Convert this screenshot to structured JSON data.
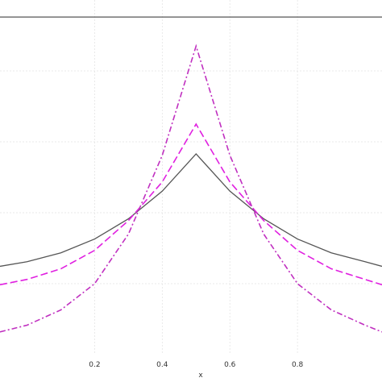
{
  "chart_data": {
    "type": "line",
    "title": "",
    "xlabel": "x",
    "ylabel": "",
    "xlim": [
      -0.08,
      1.05
    ],
    "ylim": [
      0,
      1
    ],
    "grid": true,
    "x_ticks": [
      0.2,
      0.4,
      0.6,
      0.8
    ],
    "x_tick_labels": [
      "0.2",
      "0.4",
      "0.6",
      "0.8"
    ],
    "series": [
      {
        "style": "solid",
        "color": "#555555",
        "x": [
          -0.08,
          0.0,
          0.1,
          0.2,
          0.3,
          0.4,
          0.5,
          0.6,
          0.7,
          0.8,
          0.9,
          1.0,
          1.05
        ],
        "y": [
          0.249,
          0.262,
          0.287,
          0.326,
          0.383,
          0.461,
          0.566,
          0.461,
          0.383,
          0.326,
          0.287,
          0.262,
          0.249
        ]
      },
      {
        "style": "dashed",
        "color": "#e020e0",
        "x": [
          -0.08,
          0.0,
          0.1,
          0.2,
          0.3,
          0.4,
          0.5,
          0.6,
          0.7,
          0.8,
          0.9,
          1.0,
          1.05
        ],
        "y": [
          0.197,
          0.212,
          0.242,
          0.294,
          0.378,
          0.487,
          0.65,
          0.487,
          0.378,
          0.294,
          0.242,
          0.212,
          0.197
        ]
      },
      {
        "style": "dashdot",
        "color": "#c030c0",
        "x": [
          -0.08,
          0.0,
          0.1,
          0.2,
          0.3,
          0.4,
          0.5,
          0.6,
          0.7,
          0.8,
          0.9,
          1.0,
          1.05
        ],
        "y": [
          0.064,
          0.083,
          0.126,
          0.2,
          0.34,
          0.562,
          0.87,
          0.562,
          0.34,
          0.2,
          0.126,
          0.083,
          0.064
        ]
      },
      {
        "style": "solid",
        "color": "#555555",
        "x": [
          -0.08,
          1.05
        ],
        "y": [
          0.952,
          0.952
        ]
      }
    ]
  }
}
